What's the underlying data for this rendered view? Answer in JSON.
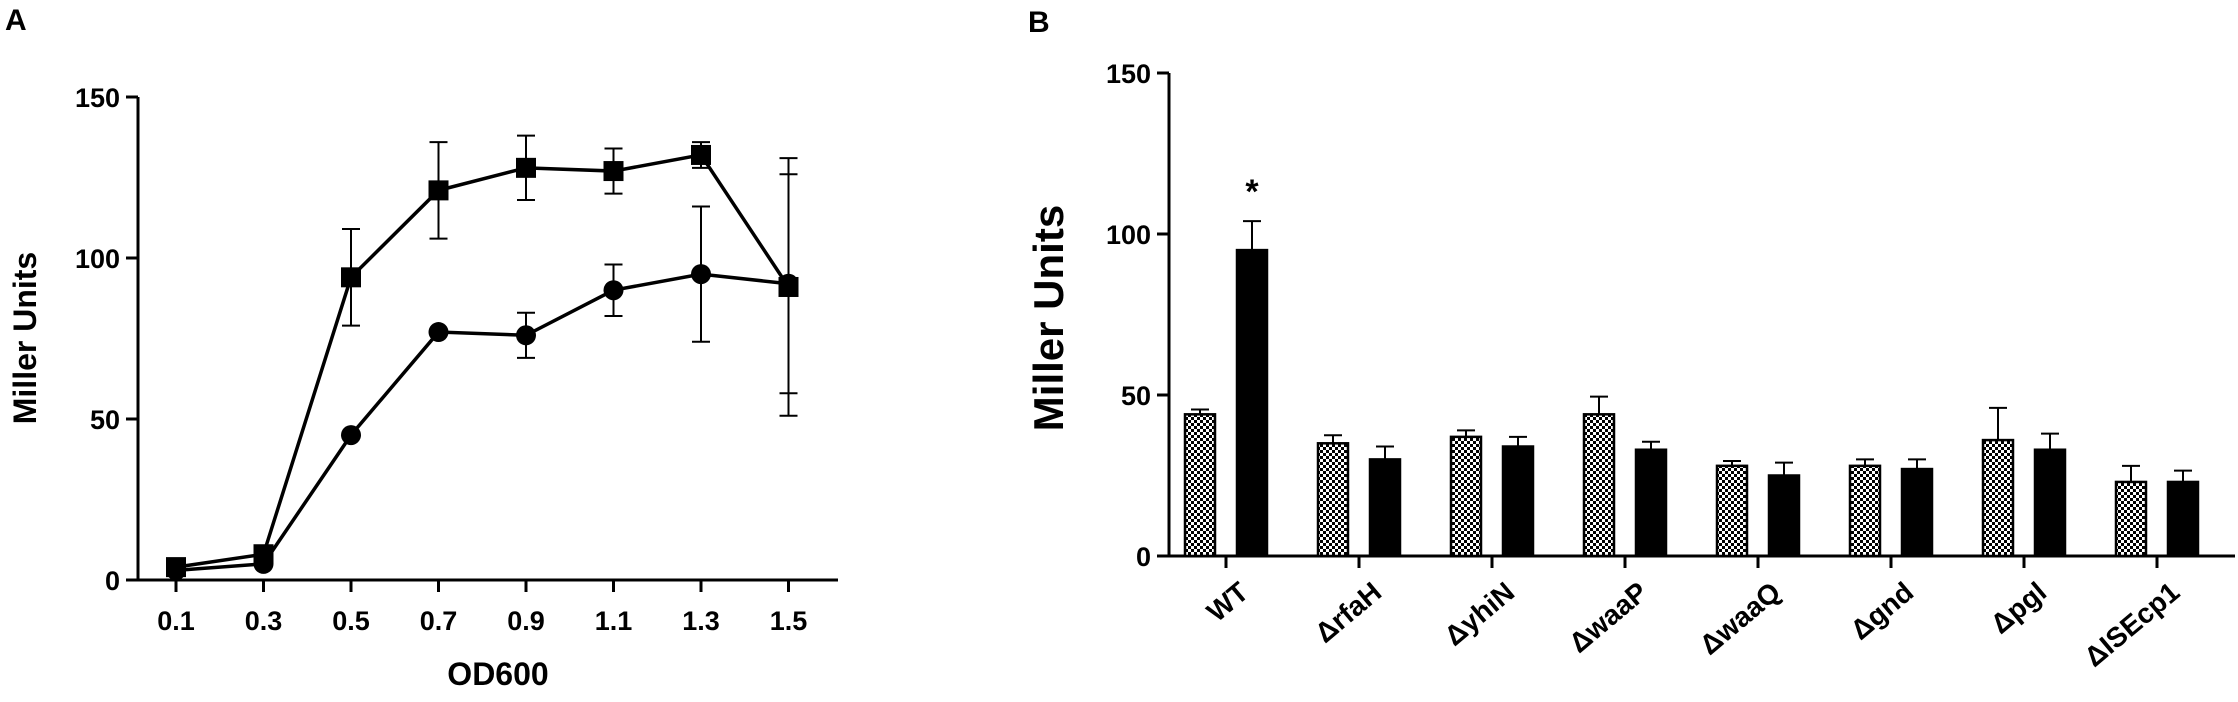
{
  "chart_data": [
    {
      "panel": "A",
      "type": "line",
      "xlabel": "OD600",
      "ylabel": "Miller Units",
      "ylim": [
        0,
        150
      ],
      "yticks": [
        0,
        50,
        100,
        150
      ],
      "x": [
        "0.1",
        "0.3",
        "0.5",
        "0.7",
        "0.9",
        "1.1",
        "1.3",
        "1.5"
      ],
      "series": [
        {
          "marker": "square",
          "values": [
            4,
            8,
            94,
            121,
            128,
            127,
            132,
            91
          ],
          "errors": [
            1,
            1,
            15,
            15,
            10,
            7,
            4,
            40
          ]
        },
        {
          "marker": "circle",
          "values": [
            3,
            5,
            45,
            77,
            76,
            90,
            95,
            92
          ],
          "errors": [
            0.5,
            0.5,
            1,
            1,
            7,
            8,
            21,
            34
          ]
        }
      ]
    },
    {
      "panel": "B",
      "type": "bar",
      "ylabel": "Miller Units",
      "ylim": [
        0,
        150
      ],
      "yticks": [
        0,
        50,
        100,
        150
      ],
      "categories": [
        "WT",
        "ΔrfaH",
        "ΔyhiN",
        "ΔwaaP",
        "ΔwaaQ",
        "Δgnd",
        "Δpgl",
        "ΔISEcp1"
      ],
      "series": [
        {
          "pattern": "checkered",
          "values": [
            44,
            35,
            37,
            44,
            28,
            28,
            36,
            23
          ],
          "errors": [
            1.5,
            2.5,
            2,
            5.5,
            1.5,
            2,
            10,
            5
          ]
        },
        {
          "pattern": "solid",
          "values": [
            95,
            30,
            34,
            33,
            25,
            27,
            33,
            23
          ],
          "errors": [
            9,
            4,
            3,
            2.5,
            4,
            3,
            5,
            3.5
          ]
        }
      ],
      "annotations": [
        {
          "category": "WT",
          "series": 1,
          "text": "*"
        }
      ]
    }
  ]
}
